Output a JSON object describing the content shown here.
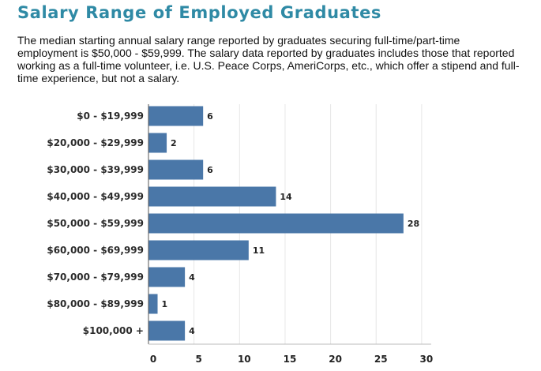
{
  "page": {
    "title": "Salary Range of Employed Graduates",
    "description": "The median starting annual salary range reported by graduates securing full-time/part-time employment is $50,000 - $59,999. The salary data reported by graduates includes those that reported working as a full-time volunteer, i.e. U.S. Peace Corps, AmeriCorps, etc., which offer a stipend and full-time experience, but not a salary."
  },
  "colors": {
    "bar": "#4a77a8",
    "title": "#2f8aa5",
    "grid": "#e6e6e6"
  },
  "chart_data": {
    "type": "bar",
    "orientation": "horizontal",
    "categories": [
      "$0 - $19,999",
      "$20,000 - $29,999",
      "$30,000 - $39,999",
      "$40,000 - $49,999",
      "$50,000 - $59,999",
      "$60,000 - $69,999",
      "$70,000 - $79,999",
      "$80,000 - $89,999",
      "$100,000 +"
    ],
    "values": [
      6,
      2,
      6,
      14,
      28,
      11,
      4,
      1,
      4
    ],
    "xlim": [
      0,
      30
    ],
    "xticks": [
      0,
      5,
      10,
      15,
      20,
      25,
      30
    ],
    "grid": true,
    "data_labels": true
  }
}
